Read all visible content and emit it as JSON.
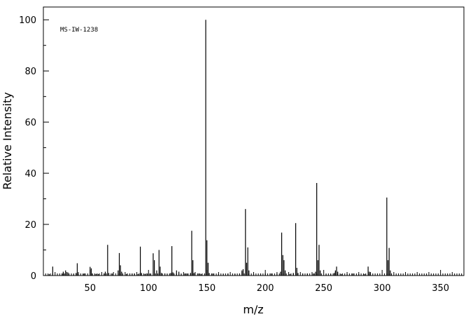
{
  "chart_data": {
    "type": "bar",
    "subtype": "mass-spectrum-sticks",
    "annotation": "MS-IW-1238",
    "xlabel": "m/z",
    "ylabel": "Relative Intensity",
    "xlim": [
      10,
      370
    ],
    "ylim": [
      0,
      105
    ],
    "x_ticks": [
      50,
      100,
      150,
      200,
      250,
      300,
      350
    ],
    "y_ticks": [
      0,
      20,
      40,
      60,
      80,
      100
    ],
    "grid": false,
    "bar_color": "#000000",
    "peaks": [
      {
        "mz": 15,
        "intensity": 0.5
      },
      {
        "mz": 18,
        "intensity": 3.5
      },
      {
        "mz": 26,
        "intensity": 0.8
      },
      {
        "mz": 27,
        "intensity": 1.5
      },
      {
        "mz": 28,
        "intensity": 0.8
      },
      {
        "mz": 29,
        "intensity": 2.0
      },
      {
        "mz": 31,
        "intensity": 1.2
      },
      {
        "mz": 36,
        "intensity": 0.6
      },
      {
        "mz": 38,
        "intensity": 1.0
      },
      {
        "mz": 39,
        "intensity": 4.8
      },
      {
        "mz": 40,
        "intensity": 0.8
      },
      {
        "mz": 44,
        "intensity": 0.6
      },
      {
        "mz": 45,
        "intensity": 0.8
      },
      {
        "mz": 50,
        "intensity": 3.4
      },
      {
        "mz": 51,
        "intensity": 2.8
      },
      {
        "mz": 52,
        "intensity": 0.8
      },
      {
        "mz": 55,
        "intensity": 0.6
      },
      {
        "mz": 57,
        "intensity": 0.6
      },
      {
        "mz": 62,
        "intensity": 0.8
      },
      {
        "mz": 63,
        "intensity": 1.5
      },
      {
        "mz": 65,
        "intensity": 12.0
      },
      {
        "mz": 66,
        "intensity": 1.0
      },
      {
        "mz": 69,
        "intensity": 0.8
      },
      {
        "mz": 74,
        "intensity": 2.0
      },
      {
        "mz": 75,
        "intensity": 8.8
      },
      {
        "mz": 76,
        "intensity": 4.0
      },
      {
        "mz": 77,
        "intensity": 1.5
      },
      {
        "mz": 81,
        "intensity": 0.6
      },
      {
        "mz": 84,
        "intensity": 0.8
      },
      {
        "mz": 86,
        "intensity": 0.8
      },
      {
        "mz": 88,
        "intensity": 0.8
      },
      {
        "mz": 91,
        "intensity": 0.6
      },
      {
        "mz": 93,
        "intensity": 11.3
      },
      {
        "mz": 94,
        "intensity": 1.0
      },
      {
        "mz": 97,
        "intensity": 0.6
      },
      {
        "mz": 99,
        "intensity": 0.8
      },
      {
        "mz": 101,
        "intensity": 0.8
      },
      {
        "mz": 104,
        "intensity": 8.7
      },
      {
        "mz": 105,
        "intensity": 6.0
      },
      {
        "mz": 107,
        "intensity": 2.0
      },
      {
        "mz": 109,
        "intensity": 10.0
      },
      {
        "mz": 110,
        "intensity": 3.5
      },
      {
        "mz": 111,
        "intensity": 1.0
      },
      {
        "mz": 114,
        "intensity": 0.8
      },
      {
        "mz": 116,
        "intensity": 0.6
      },
      {
        "mz": 119,
        "intensity": 1.0
      },
      {
        "mz": 120,
        "intensity": 11.5
      },
      {
        "mz": 121,
        "intensity": 1.2
      },
      {
        "mz": 124,
        "intensity": 2.0
      },
      {
        "mz": 126,
        "intensity": 1.5
      },
      {
        "mz": 128,
        "intensity": 0.6
      },
      {
        "mz": 131,
        "intensity": 0.8
      },
      {
        "mz": 133,
        "intensity": 0.8
      },
      {
        "mz": 136,
        "intensity": 1.0
      },
      {
        "mz": 137,
        "intensity": 17.5
      },
      {
        "mz": 138,
        "intensity": 6.0
      },
      {
        "mz": 139,
        "intensity": 1.0
      },
      {
        "mz": 143,
        "intensity": 0.8
      },
      {
        "mz": 145,
        "intensity": 0.6
      },
      {
        "mz": 149,
        "intensity": 100.0
      },
      {
        "mz": 150,
        "intensity": 13.8
      },
      {
        "mz": 151,
        "intensity": 5.0
      },
      {
        "mz": 152,
        "intensity": 1.0
      },
      {
        "mz": 155,
        "intensity": 0.8
      },
      {
        "mz": 160,
        "intensity": 0.6
      },
      {
        "mz": 164,
        "intensity": 0.6
      },
      {
        "mz": 168,
        "intensity": 0.8
      },
      {
        "mz": 174,
        "intensity": 0.6
      },
      {
        "mz": 178,
        "intensity": 0.8
      },
      {
        "mz": 180,
        "intensity": 2.0
      },
      {
        "mz": 181,
        "intensity": 2.5
      },
      {
        "mz": 183,
        "intensity": 26.0
      },
      {
        "mz": 184,
        "intensity": 5.0
      },
      {
        "mz": 185,
        "intensity": 11.0
      },
      {
        "mz": 186,
        "intensity": 2.0
      },
      {
        "mz": 190,
        "intensity": 0.6
      },
      {
        "mz": 196,
        "intensity": 0.8
      },
      {
        "mz": 200,
        "intensity": 0.8
      },
      {
        "mz": 205,
        "intensity": 0.8
      },
      {
        "mz": 210,
        "intensity": 0.8
      },
      {
        "mz": 213,
        "intensity": 1.5
      },
      {
        "mz": 214,
        "intensity": 16.8
      },
      {
        "mz": 215,
        "intensity": 8.0
      },
      {
        "mz": 216,
        "intensity": 6.0
      },
      {
        "mz": 217,
        "intensity": 2.0
      },
      {
        "mz": 221,
        "intensity": 0.6
      },
      {
        "mz": 224,
        "intensity": 1.0
      },
      {
        "mz": 226,
        "intensity": 20.5
      },
      {
        "mz": 227,
        "intensity": 3.0
      },
      {
        "mz": 228,
        "intensity": 1.0
      },
      {
        "mz": 232,
        "intensity": 0.8
      },
      {
        "mz": 236,
        "intensity": 0.8
      },
      {
        "mz": 241,
        "intensity": 0.8
      },
      {
        "mz": 243,
        "intensity": 1.5
      },
      {
        "mz": 244,
        "intensity": 36.2
      },
      {
        "mz": 245,
        "intensity": 6.0
      },
      {
        "mz": 246,
        "intensity": 12.0
      },
      {
        "mz": 247,
        "intensity": 2.0
      },
      {
        "mz": 252,
        "intensity": 0.6
      },
      {
        "mz": 256,
        "intensity": 0.6
      },
      {
        "mz": 259,
        "intensity": 1.0
      },
      {
        "mz": 260,
        "intensity": 2.0
      },
      {
        "mz": 261,
        "intensity": 3.5
      },
      {
        "mz": 262,
        "intensity": 1.5
      },
      {
        "mz": 265,
        "intensity": 0.6
      },
      {
        "mz": 270,
        "intensity": 0.6
      },
      {
        "mz": 275,
        "intensity": 0.8
      },
      {
        "mz": 280,
        "intensity": 0.6
      },
      {
        "mz": 285,
        "intensity": 0.6
      },
      {
        "mz": 288,
        "intensity": 3.5
      },
      {
        "mz": 289,
        "intensity": 1.5
      },
      {
        "mz": 290,
        "intensity": 1.0
      },
      {
        "mz": 304,
        "intensity": 30.5
      },
      {
        "mz": 305,
        "intensity": 6.0
      },
      {
        "mz": 306,
        "intensity": 10.8
      },
      {
        "mz": 307,
        "intensity": 2.0
      }
    ]
  }
}
